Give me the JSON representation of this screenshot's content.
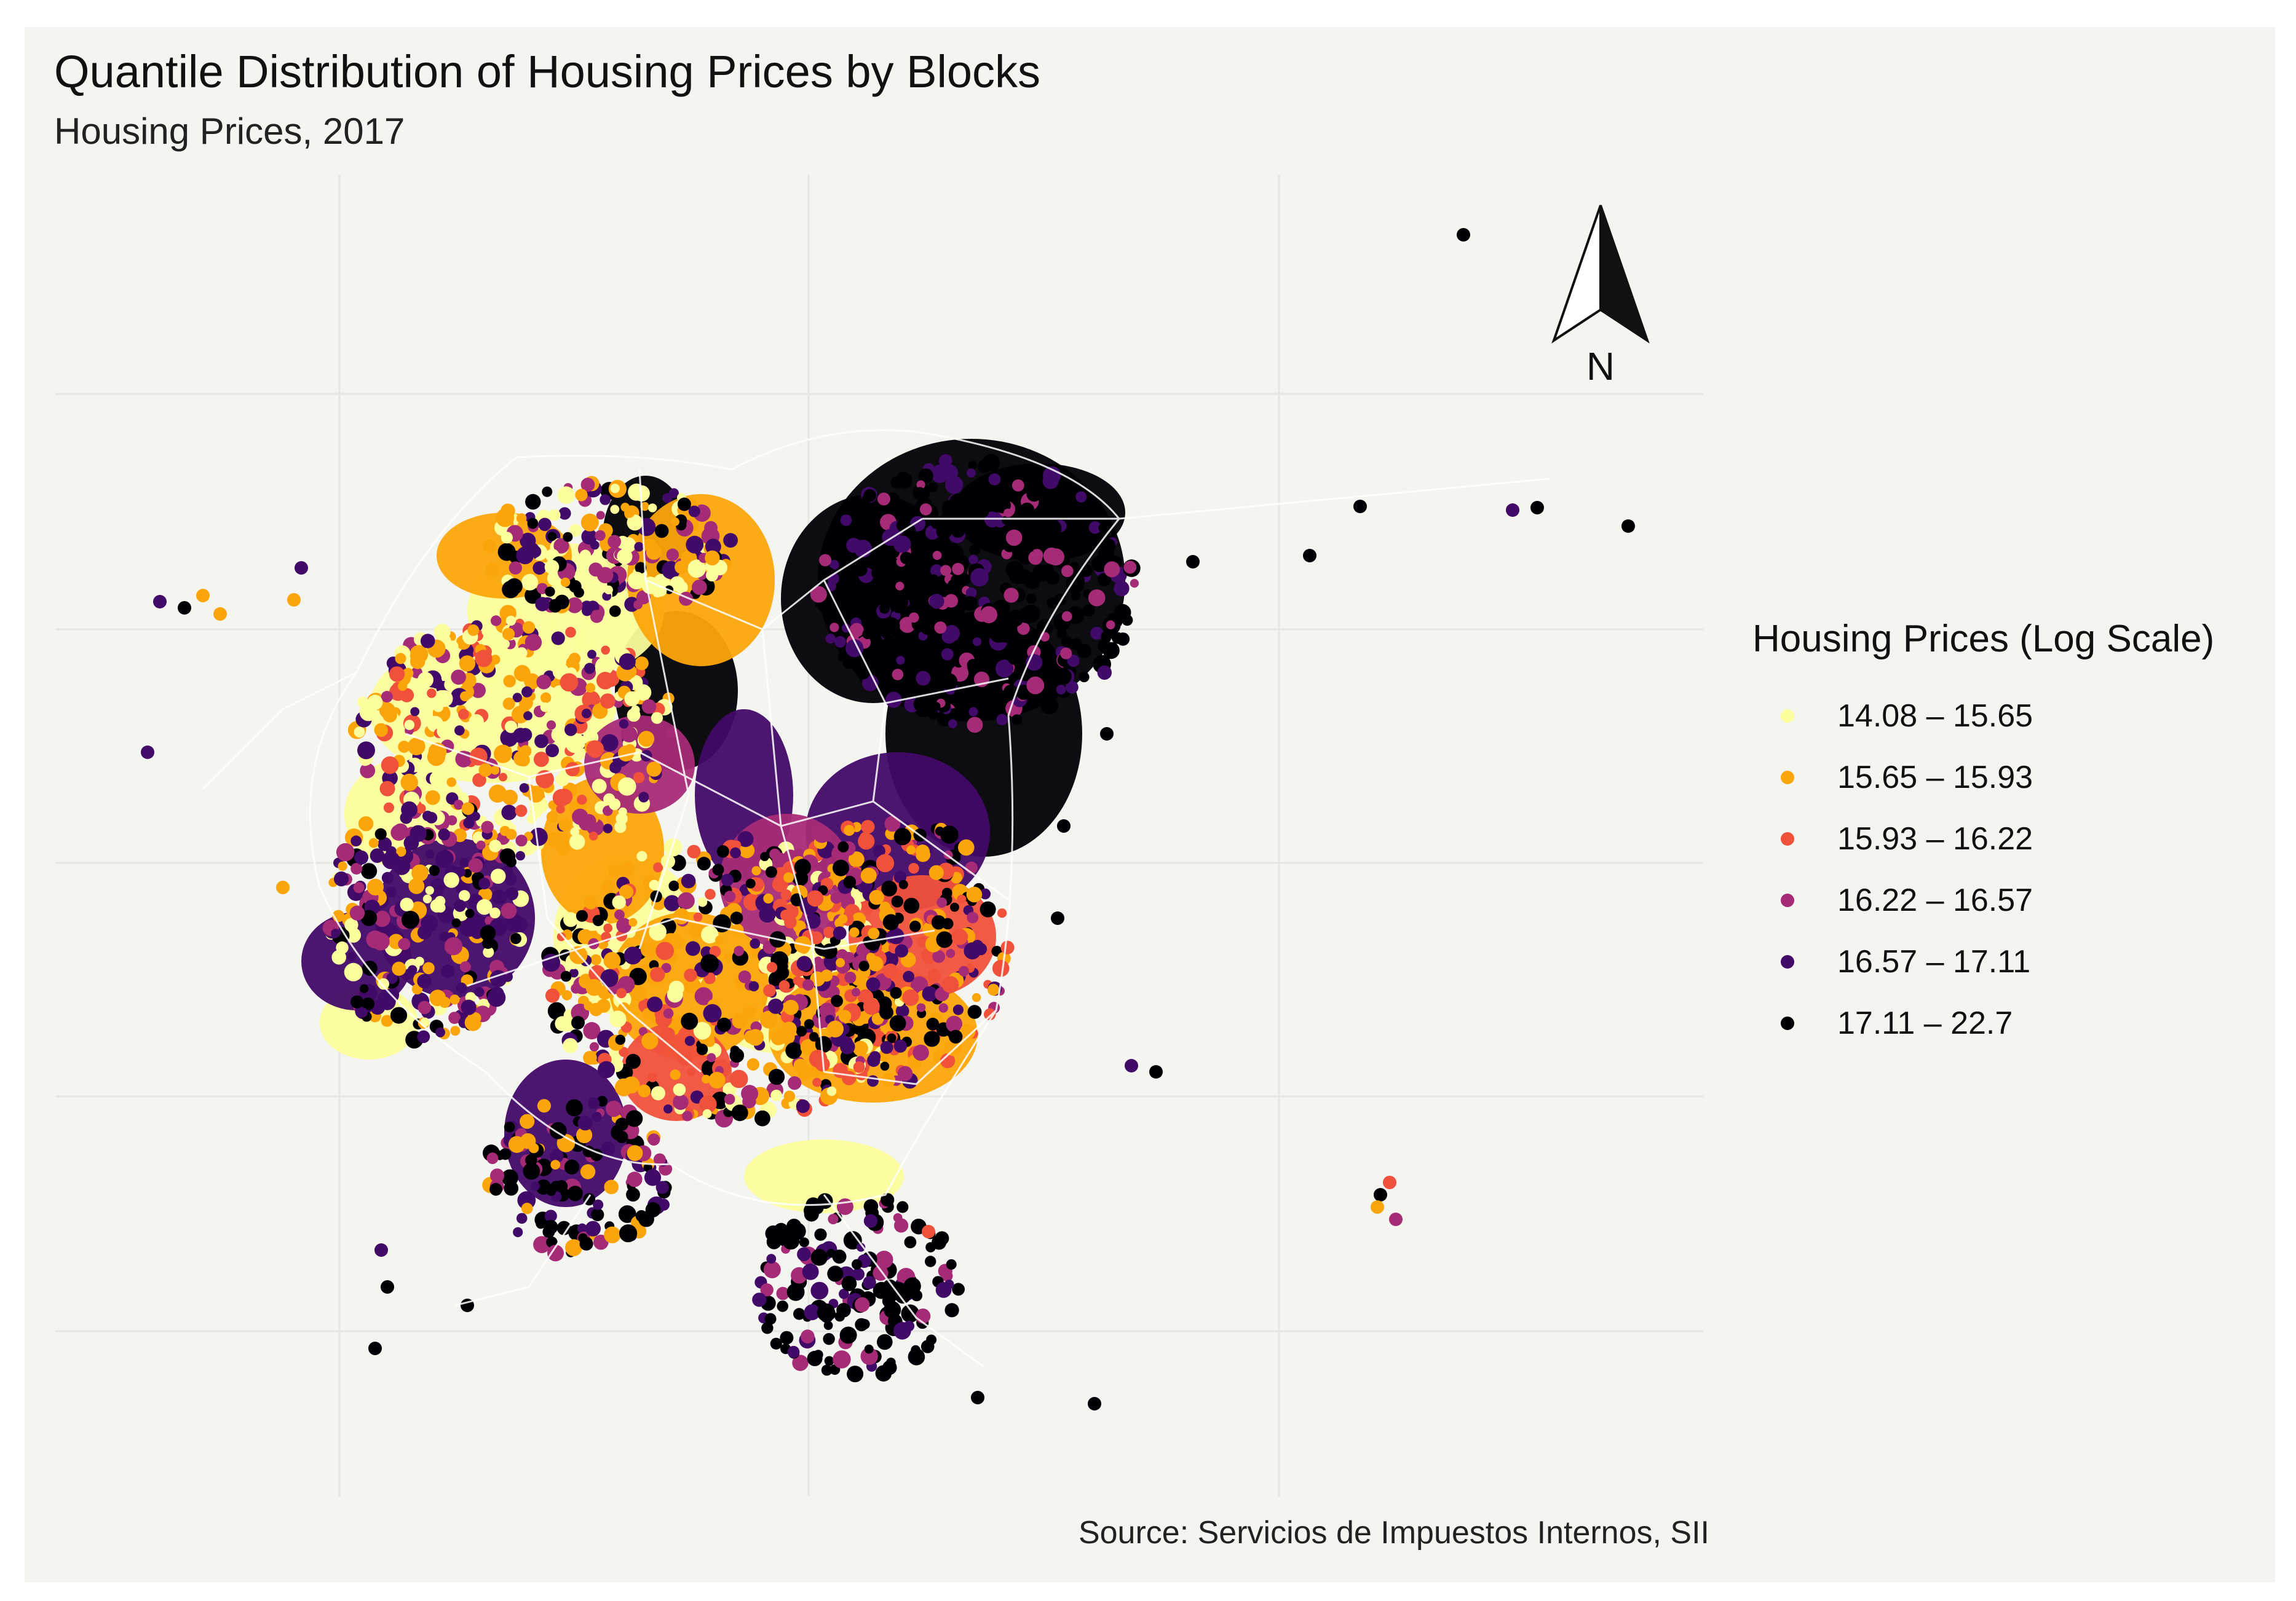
{
  "chart_data": {
    "type": "map",
    "title": "Quantile Distribution of Housing Prices by Blocks",
    "subtitle": "Housing Prices, 2017",
    "caption": "Source: Servicios de Impuestos Internos, SII",
    "north_arrow": "N",
    "legend": {
      "title": "Housing Prices (Log Scale)",
      "position": "right",
      "classes": [
        {
          "label": "14.08 – 15.65",
          "color": "#fcfd9c"
        },
        {
          "label": "15.65 – 15.93",
          "color": "#fca50a"
        },
        {
          "label": "15.93 – 16.22",
          "color": "#f0513a"
        },
        {
          "label": "16.22 – 16.57",
          "color": "#a62b77"
        },
        {
          "label": "16.57 – 17.11",
          "color": "#420a68"
        },
        {
          "label": "17.11 – 22.7",
          "color": "#000004"
        }
      ]
    },
    "grid": true
  }
}
